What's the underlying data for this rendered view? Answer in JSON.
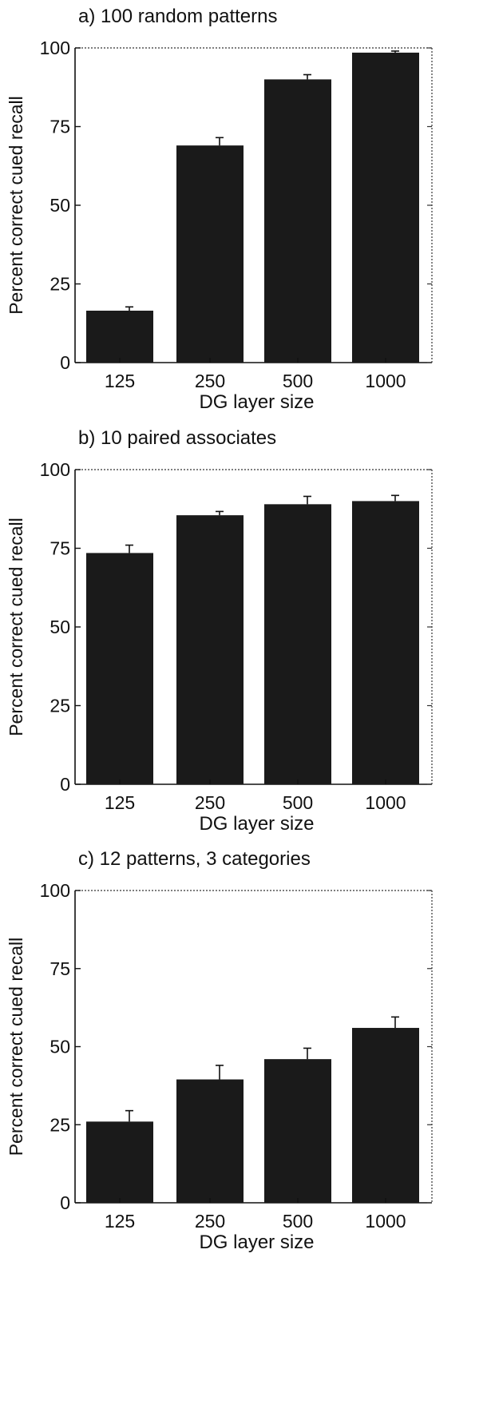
{
  "chart_data": [
    {
      "type": "bar",
      "title": "a) 100 random patterns",
      "xlabel": "DG layer size",
      "ylabel": "Percent correct cued recall",
      "categories": [
        "125",
        "250",
        "500",
        "1000"
      ],
      "values": [
        16.5,
        69,
        90,
        98.5
      ],
      "errors": [
        1.2,
        2.5,
        1.5,
        0.5
      ],
      "ylim": [
        0,
        100
      ],
      "yticks": [
        "0",
        "25",
        "50",
        "75",
        "100"
      ],
      "grid": false,
      "bar_color": "#1a1a1a"
    },
    {
      "type": "bar",
      "title": "b) 10 paired associates",
      "xlabel": "DG layer size",
      "ylabel": "Percent correct cued recall",
      "categories": [
        "125",
        "250",
        "500",
        "1000"
      ],
      "values": [
        73.5,
        85.5,
        89,
        90
      ],
      "errors": [
        2.5,
        1.2,
        2.5,
        1.8
      ],
      "ylim": [
        0,
        100
      ],
      "yticks": [
        "0",
        "25",
        "50",
        "75",
        "100"
      ],
      "grid": false,
      "bar_color": "#1a1a1a"
    },
    {
      "type": "bar",
      "title": "c) 12 patterns, 3 categories",
      "xlabel": "DG layer size",
      "ylabel": "Percent correct cued recall",
      "categories": [
        "125",
        "250",
        "500",
        "1000"
      ],
      "values": [
        26,
        39.5,
        46,
        56
      ],
      "errors": [
        3.5,
        4.5,
        3.5,
        3.5
      ],
      "ylim": [
        0,
        100
      ],
      "yticks": [
        "0",
        "25",
        "50",
        "75",
        "100"
      ],
      "grid": false,
      "bar_color": "#1a1a1a"
    }
  ]
}
